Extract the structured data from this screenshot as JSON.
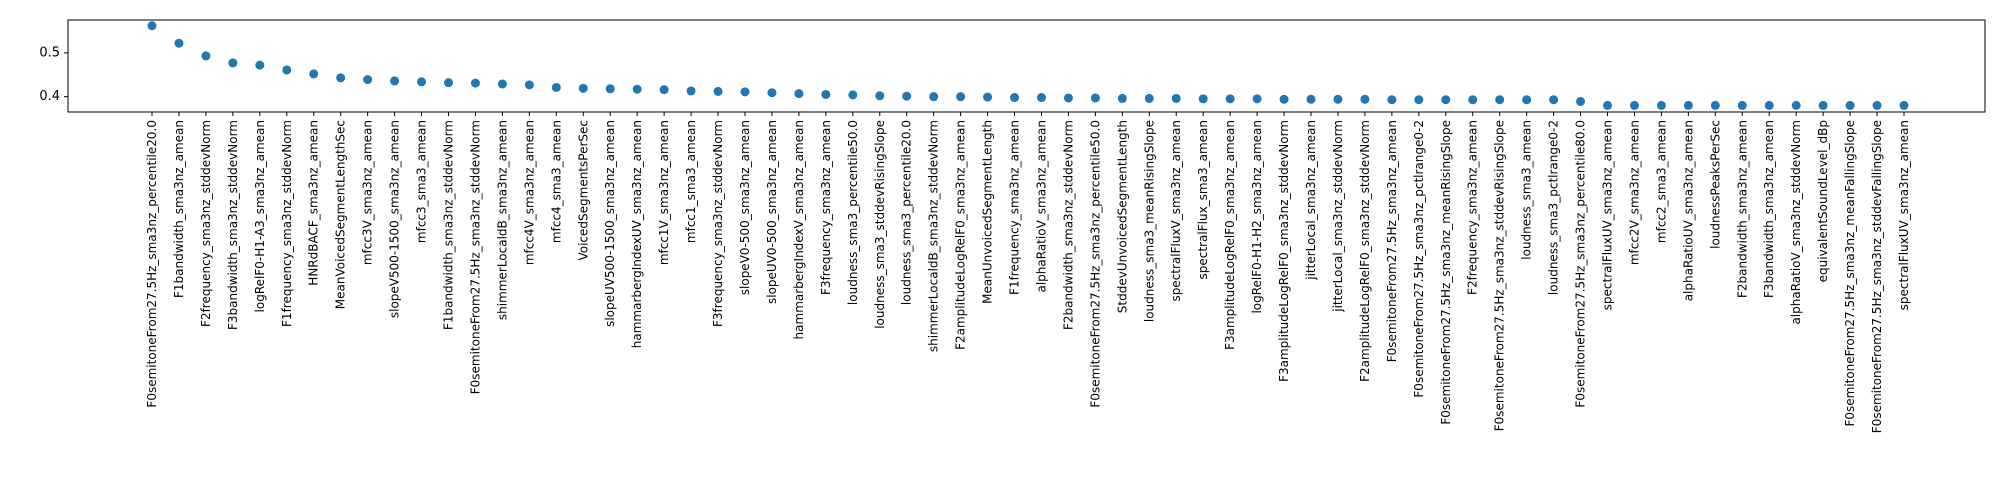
{
  "chart_data": {
    "type": "scatter",
    "marker_color": "#1f77b4",
    "grid": false,
    "legend": "none",
    "ylim": [
      0.365,
      0.575
    ],
    "yticks": [
      0.4,
      0.5
    ],
    "ytick_labels": [
      "0.4",
      "0.5"
    ],
    "categories": [
      "F0semitoneFrom27.5Hz_sma3nz_percentile20.0",
      "F1bandwidth_sma3nz_amean",
      "F2frequency_sma3nz_stddevNorm",
      "F3bandwidth_sma3nz_stddevNorm",
      "logRelF0-H1-A3_sma3nz_amean",
      "F1frequency_sma3nz_stddevNorm",
      "HNRdBACF_sma3nz_amean",
      "MeanVoicedSegmentLengthSec",
      "mfcc3V_sma3nz_amean",
      "slopeV500-1500_sma3nz_amean",
      "mfcc3_sma3_amean",
      "F1bandwidth_sma3nz_stddevNorm",
      "F0semitoneFrom27.5Hz_sma3nz_stddevNorm",
      "shimmerLocaldB_sma3nz_amean",
      "mfcc4V_sma3nz_amean",
      "mfcc4_sma3_amean",
      "VoicedSegmentsPerSec",
      "slopeUV500-1500_sma3nz_amean",
      "hammarbergIndexUV_sma3nz_amean",
      "mfcc1V_sma3nz_amean",
      "mfcc1_sma3_amean",
      "F3frequency_sma3nz_stddevNorm",
      "slopeV0-500_sma3nz_amean",
      "slopeUV0-500_sma3nz_amean",
      "hammarbergIndexV_sma3nz_amean",
      "F3frequency_sma3nz_amean",
      "loudness_sma3_percentile50.0",
      "loudness_sma3_stddevRisingSlope",
      "loudness_sma3_percentile20.0",
      "shimmerLocaldB_sma3nz_stddevNorm",
      "F2amplitudeLogRelF0_sma3nz_amean",
      "MeanUnvoicedSegmentLength",
      "F1frequency_sma3nz_amean",
      "alphaRatioV_sma3nz_amean",
      "F2bandwidth_sma3nz_stddevNorm",
      "F0semitoneFrom27.5Hz_sma3nz_percentile50.0",
      "StddevUnvoicedSegmentLength",
      "loudness_sma3_meanRisingSlope",
      "spectralFluxV_sma3nz_amean",
      "spectralFlux_sma3_amean",
      "F3amplitudeLogRelF0_sma3nz_amean",
      "logRelF0-H1-H2_sma3nz_amean",
      "F3amplitudeLogRelF0_sma3nz_stddevNorm",
      "jitterLocal_sma3nz_amean",
      "jitterLocal_sma3nz_stddevNorm",
      "F2amplitudeLogRelF0_sma3nz_stddevNorm",
      "F0semitoneFrom27.5Hz_sma3nz_amean",
      "F0semitoneFrom27.5Hz_sma3nz_pctlrange0-2",
      "F0semitoneFrom27.5Hz_sma3nz_meanRisingSlope",
      "F2frequency_sma3nz_amean",
      "F0semitoneFrom27.5Hz_sma3nz_stddevRisingSlope",
      "loudness_sma3_amean",
      "loudness_sma3_pctlrange0-2",
      "F0semitoneFrom27.5Hz_sma3nz_percentile80.0",
      "spectralFluxUV_sma3nz_amean",
      "mfcc2V_sma3nz_amean",
      "mfcc2_sma3_amean",
      "alphaRatioUV_sma3nz_amean",
      "loudnessPeaksPerSec",
      "F2bandwidth_sma3nz_amean",
      "F3bandwidth_sma3nz_amean",
      "alphaRatioV_sma3nz_stddevNorm",
      "equivalentSoundLevel_dBp",
      "F0semitoneFrom27.5Hz_sma3nz_meanFallingSlope",
      "F0semitoneFrom27.5Hz_sma3nz_stddevFallingSlope",
      "spectralFluxUV_sma3nz_amean"
    ],
    "values": [
      0.562,
      0.522,
      0.493,
      0.477,
      0.472,
      0.461,
      0.452,
      0.443,
      0.439,
      0.436,
      0.434,
      0.432,
      0.431,
      0.429,
      0.427,
      0.421,
      0.419,
      0.418,
      0.417,
      0.416,
      0.413,
      0.412,
      0.411,
      0.409,
      0.407,
      0.405,
      0.404,
      0.402,
      0.401,
      0.4,
      0.4,
      0.399,
      0.398,
      0.398,
      0.397,
      0.397,
      0.396,
      0.396,
      0.396,
      0.395,
      0.395,
      0.395,
      0.394,
      0.394,
      0.394,
      0.394,
      0.393,
      0.393,
      0.393,
      0.393,
      0.393,
      0.393,
      0.393,
      0.389,
      0.38,
      0.38,
      0.38,
      0.38,
      0.38,
      0.38,
      0.38,
      0.38,
      0.38,
      0.38,
      0.38,
      0.38
    ]
  }
}
